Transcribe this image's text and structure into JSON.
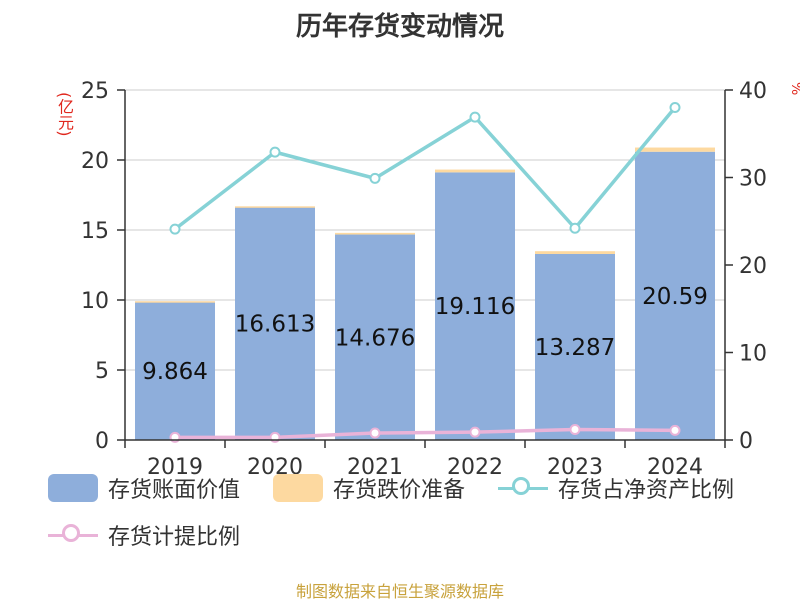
{
  "title": "历年存货变动情况",
  "left_unit": "(亿元)",
  "right_unit": "%",
  "source": "制图数据来自恒生聚源数据库",
  "colors": {
    "bar_book": "#8eaedb",
    "bar_reserve": "#fdd9a0",
    "line_ratio": "#86d2d6",
    "line_provision": "#e9b3d8",
    "axis": "#333333",
    "grid": "#cccccc"
  },
  "legend": [
    {
      "label": "存货账面价值",
      "symbol": "bar",
      "color": "#8eaedb"
    },
    {
      "label": "存货跌价准备",
      "symbol": "bar",
      "color": "#fdd9a0"
    },
    {
      "label": "存货占净资产比例",
      "symbol": "line",
      "color": "#86d2d6"
    },
    {
      "label": "存货计提比例",
      "symbol": "line",
      "color": "#e9b3d8"
    }
  ],
  "chart_data": {
    "type": "bar",
    "categories": [
      "2019",
      "2020",
      "2021",
      "2022",
      "2023",
      "2024"
    ],
    "series": [
      {
        "name": "存货账面价值",
        "type": "bar",
        "axis": "left",
        "stack": "inv",
        "values": [
          9.864,
          16.613,
          14.676,
          19.116,
          13.287,
          20.59
        ],
        "labels": [
          "9.864",
          "16.613",
          "14.676",
          "19.116",
          "13.287",
          "20.59"
        ]
      },
      {
        "name": "存货跌价准备",
        "type": "bar",
        "axis": "left",
        "stack": "inv",
        "values": [
          0.05,
          0.08,
          0.12,
          0.2,
          0.2,
          0.3
        ]
      },
      {
        "name": "存货占净资产比例",
        "type": "line",
        "axis": "right",
        "values": [
          24.1,
          32.9,
          29.9,
          36.9,
          24.2,
          38.0
        ]
      },
      {
        "name": "存货计提比例",
        "type": "line",
        "axis": "right",
        "values": [
          0.3,
          0.3,
          0.8,
          0.9,
          1.2,
          1.1
        ]
      }
    ],
    "y_left": {
      "min": 0,
      "max": 25,
      "ticks": [
        "0",
        "5",
        "10",
        "15",
        "20",
        "25"
      ]
    },
    "y_right": {
      "min": 0,
      "max": 40,
      "ticks": [
        "0",
        "10",
        "20",
        "30",
        "40"
      ]
    },
    "grid": true,
    "legend_position": "bottom"
  }
}
